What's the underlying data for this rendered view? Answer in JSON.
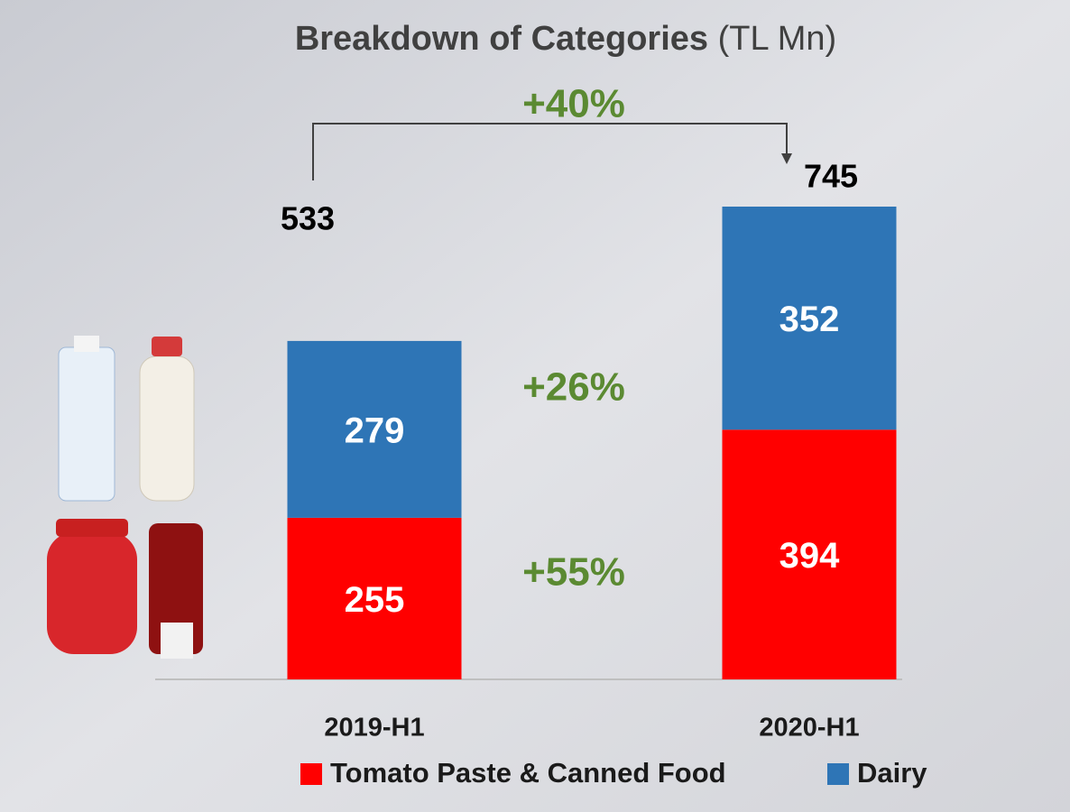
{
  "chart_data": {
    "type": "bar",
    "stacked": true,
    "title": "Breakdown of Categories",
    "subtitle": "(TL Mn)",
    "categories": [
      "2019-H1",
      "2020-H1"
    ],
    "series": [
      {
        "name": "Tomato Paste & Canned Food",
        "color": "#ff0000",
        "values": [
          255,
          394
        ]
      },
      {
        "name": "Dairy",
        "color": "#2e75b6",
        "values": [
          279,
          352
        ]
      }
    ],
    "totals": [
      533,
      745
    ],
    "annotations": {
      "total_growth": "+40%",
      "dairy_growth": "+26%",
      "tomato_growth": "+55%"
    },
    "annotation_color": "#5b8a32"
  }
}
